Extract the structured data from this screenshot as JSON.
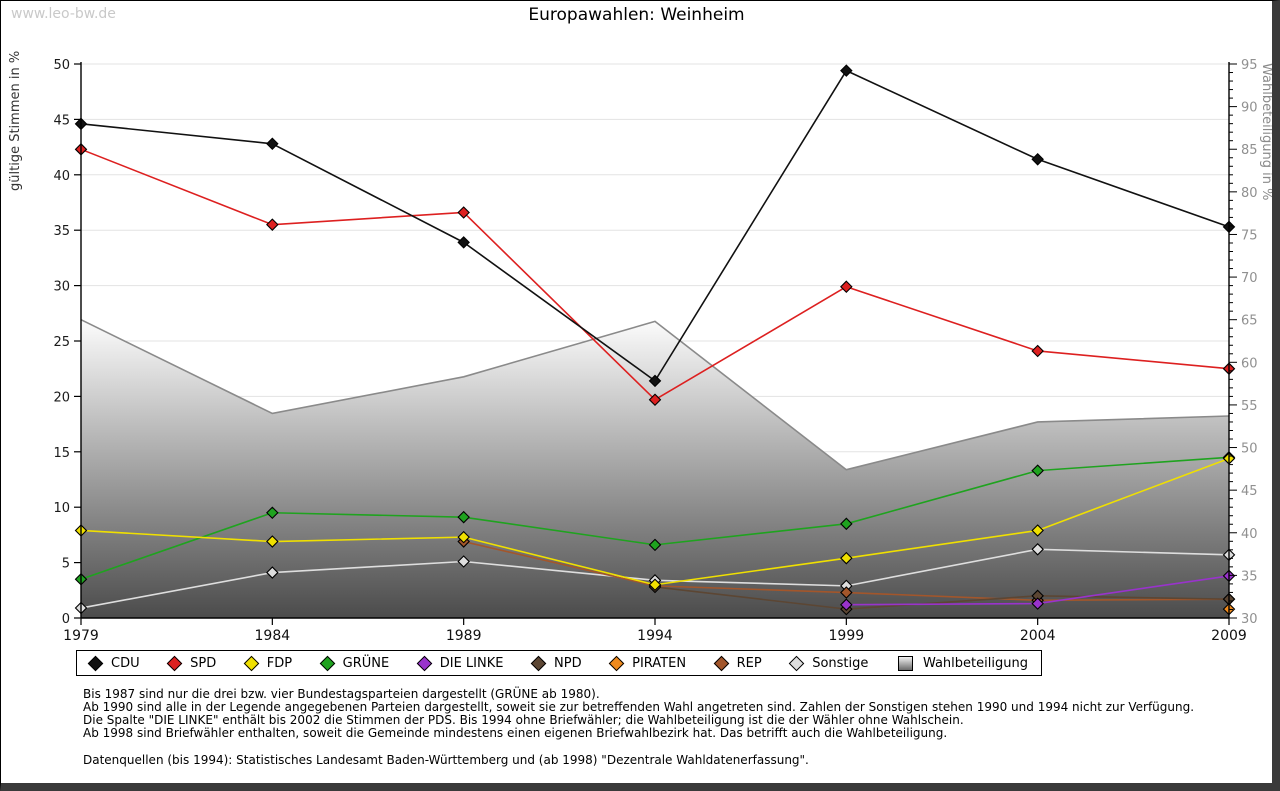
{
  "page": {
    "watermark": "www.leo-bw.de",
    "title": "Europawahlen: Weinheim"
  },
  "chart_data": {
    "type": "line",
    "title": "Europawahlen: Weinheim",
    "x_categories": [
      "1979",
      "1984",
      "1989",
      "1994",
      "1999",
      "2004",
      "2009"
    ],
    "left_axis": {
      "label": "gültige Stimmen in %",
      "min": 0,
      "max": 50,
      "tick_step": 5
    },
    "right_axis": {
      "label": "Wahlbeteiligung in %",
      "min": 30,
      "max": 95,
      "tick_step": 5,
      "minor_tick_step": 1
    },
    "grid": true,
    "legend_position": "bottom",
    "colors": {
      "grid": "#e3e3e3",
      "axis": "#000000",
      "left_tick_label": "#1a1a1a",
      "right_tick_label": "#909090",
      "left_axis_title": "#333333",
      "right_axis_title": "#8a8a8a",
      "area_gradient_top": "#fcfcfc",
      "area_gradient_bottom": "#4b4b4b",
      "area_border": "#8a8a8a"
    },
    "series": [
      {
        "name": "CDU",
        "axis": "left",
        "kind": "line",
        "color": "#111111",
        "values": [
          44.6,
          42.8,
          33.9,
          21.4,
          49.4,
          41.4,
          35.3
        ]
      },
      {
        "name": "SPD",
        "axis": "left",
        "kind": "line",
        "color": "#dd2020",
        "values": [
          42.3,
          35.5,
          36.6,
          19.7,
          29.9,
          24.1,
          22.5
        ]
      },
      {
        "name": "FDP",
        "axis": "left",
        "kind": "line",
        "color": "#f0e000",
        "values": [
          7.9,
          6.9,
          7.3,
          3.0,
          5.4,
          7.9,
          14.4
        ]
      },
      {
        "name": "GRÜNE",
        "axis": "left",
        "kind": "line",
        "color": "#1fa31f",
        "values": [
          3.5,
          9.5,
          9.1,
          6.6,
          8.5,
          13.3,
          14.5
        ]
      },
      {
        "name": "DIE LINKE",
        "axis": "left",
        "kind": "line",
        "color": "#9933cc",
        "values": [
          null,
          null,
          null,
          null,
          1.2,
          1.3,
          3.8
        ]
      },
      {
        "name": "NPD",
        "axis": "left",
        "kind": "line",
        "color": "#5c4633",
        "values": [
          null,
          null,
          null,
          2.8,
          0.8,
          2.0,
          1.7
        ]
      },
      {
        "name": "PIRATEN",
        "axis": "left",
        "kind": "line",
        "color": "#ef8a1d",
        "values": [
          null,
          null,
          null,
          null,
          null,
          null,
          0.8
        ]
      },
      {
        "name": "REP",
        "axis": "left",
        "kind": "line",
        "color": "#a3562b",
        "values": [
          null,
          null,
          6.9,
          2.9,
          2.3,
          1.6,
          1.7
        ]
      },
      {
        "name": "Sonstige",
        "axis": "left",
        "kind": "line",
        "color": "#dedede",
        "values": [
          0.9,
          4.1,
          5.1,
          3.4,
          2.9,
          6.2,
          5.7
        ]
      },
      {
        "name": "Wahlbeteiligung",
        "axis": "right",
        "kind": "area",
        "color": "#8a8a8a",
        "values": [
          65.0,
          54.0,
          58.3,
          64.8,
          47.4,
          53.0,
          53.7
        ]
      }
    ],
    "draw_order": [
      "Wahlbeteiligung",
      "Sonstige",
      "REP",
      "NPD",
      "PIRATEN",
      "DIE LINKE",
      "GRÜNE",
      "FDP",
      "SPD",
      "CDU"
    ]
  },
  "footnotes": {
    "lines": [
      "Bis 1987 sind nur die drei bzw. vier Bundestagsparteien dargestellt (GRÜNE ab 1980).",
      "Ab 1990 sind alle in der Legende angegebenen Parteien dargestellt, soweit sie zur betreffenden Wahl angetreten sind. Zahlen der Sonstigen stehen 1990 und 1994 nicht zur Verfügung.",
      "Die Spalte \"DIE LINKE\" enthält bis 2002 die Stimmen der PDS. Bis 1994 ohne Briefwähler; die Wahlbeteiligung ist die der Wähler ohne Wahlschein.",
      "Ab 1998 sind Briefwähler enthalten, soweit die Gemeinde mindestens einen eigenen Briefwahlbezirk hat. Das betrifft auch die Wahlbeteiligung."
    ],
    "source": "Datenquellen (bis 1994): Statistisches Landesamt Baden-Württemberg und (ab 1998) \"Dezentrale Wahldatenerfassung\"."
  }
}
